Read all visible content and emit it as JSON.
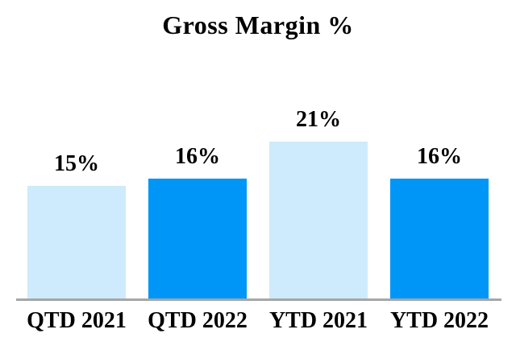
{
  "chart_data": {
    "type": "bar",
    "title": "Gross Margin %",
    "categories": [
      "QTD 2021",
      "QTD 2022",
      "YTD 2021",
      "YTD 2022"
    ],
    "values": [
      15,
      16,
      21,
      16
    ],
    "value_labels": [
      "15%",
      "16%",
      "21%",
      "16%"
    ],
    "series": [
      {
        "name": "Gross Margin %",
        "values": [
          15,
          16,
          21,
          16
        ]
      }
    ],
    "bar_colors": [
      "#CDEBFC",
      "#0096F8",
      "#CDEBFC",
      "#0096F8"
    ],
    "xlabel": "",
    "ylabel": "",
    "ylim": [
      0,
      24
    ],
    "grid": false,
    "legend_position": "none",
    "axis_line_color": "#A6A6A6",
    "label_color": "#000000",
    "background_color": "#FFFFFF"
  }
}
